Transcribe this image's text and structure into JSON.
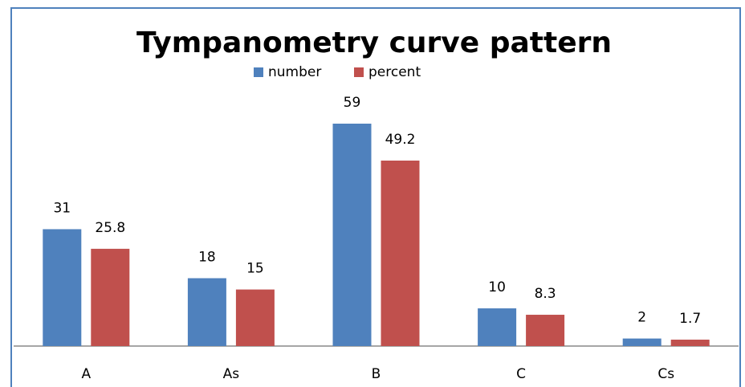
{
  "chart_data": {
    "type": "bar",
    "title": "Tympanometry curve pattern",
    "categories": [
      "A",
      "As",
      "B",
      "C",
      "Cs"
    ],
    "series": [
      {
        "name": "number",
        "color": "#4f81bd",
        "values": [
          31,
          18,
          59,
          10,
          2
        ]
      },
      {
        "name": "percent",
        "color": "#c0504d",
        "values": [
          25.8,
          15,
          49.2,
          8.3,
          1.7
        ]
      }
    ]
  }
}
